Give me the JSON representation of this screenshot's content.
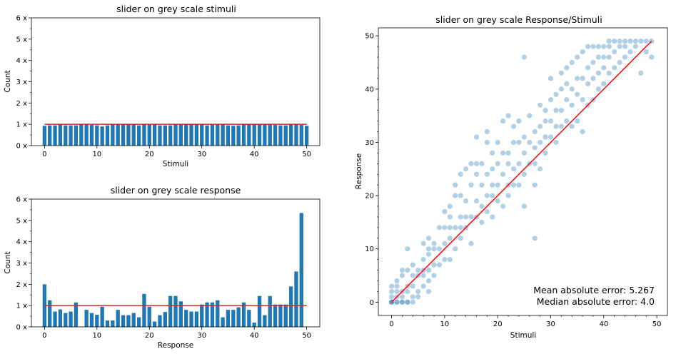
{
  "chart_data": [
    {
      "type": "bar",
      "title": "slider on grey scale stimuli",
      "xlabel": "Stimuli",
      "ylabel": "Count",
      "xlim": [
        -2.5,
        52.5
      ],
      "ylim": [
        0,
        6
      ],
      "xticks": [
        "0",
        "10",
        "20",
        "30",
        "40",
        "50"
      ],
      "yticks": [
        "0 x",
        "1 x",
        "2 x",
        "3 x",
        "4 x",
        "5 x",
        "6 x"
      ],
      "x": [
        0,
        1,
        2,
        3,
        4,
        5,
        6,
        7,
        8,
        9,
        10,
        11,
        12,
        13,
        14,
        15,
        16,
        17,
        18,
        19,
        20,
        21,
        22,
        23,
        24,
        25,
        26,
        27,
        28,
        29,
        30,
        31,
        32,
        33,
        34,
        35,
        36,
        37,
        38,
        39,
        40,
        41,
        42,
        43,
        44,
        45,
        46,
        47,
        48,
        49,
        50
      ],
      "values": [
        0.93,
        0.95,
        0.95,
        1.0,
        0.95,
        0.95,
        0.95,
        1.0,
        1.0,
        0.97,
        0.95,
        0.9,
        0.95,
        1.0,
        1.0,
        1.0,
        1.0,
        1.0,
        0.95,
        1.0,
        1.0,
        1.0,
        0.95,
        0.95,
        0.95,
        1.0,
        1.0,
        1.0,
        1.0,
        1.0,
        1.0,
        0.95,
        1.0,
        1.0,
        1.0,
        0.95,
        0.93,
        0.95,
        1.0,
        1.0,
        1.0,
        1.0,
        1.0,
        1.0,
        0.97,
        0.95,
        0.95,
        1.0,
        1.0,
        0.97,
        0.93
      ],
      "reference_line": 1.0,
      "bar_color": "#1f77b4",
      "line_color": "#d62728"
    },
    {
      "type": "bar",
      "title": "slider on grey scale response",
      "xlabel": "Response",
      "ylabel": "Count",
      "xlim": [
        -2.5,
        52.5
      ],
      "ylim": [
        0,
        6
      ],
      "xticks": [
        "0",
        "10",
        "20",
        "30",
        "40",
        "50"
      ],
      "yticks": [
        "0 x",
        "1 x",
        "2 x",
        "3 x",
        "4 x",
        "5 x",
        "6 x"
      ],
      "x": [
        0,
        1,
        2,
        3,
        4,
        5,
        6,
        7,
        8,
        9,
        10,
        11,
        12,
        13,
        14,
        15,
        16,
        17,
        18,
        19,
        20,
        21,
        22,
        23,
        24,
        25,
        26,
        27,
        28,
        29,
        30,
        31,
        32,
        33,
        34,
        35,
        36,
        37,
        38,
        39,
        40,
        41,
        42,
        43,
        44,
        45,
        46,
        47,
        48,
        49,
        50
      ],
      "values": [
        2.0,
        1.25,
        0.72,
        0.82,
        0.65,
        0.72,
        1.15,
        0.0,
        0.8,
        0.65,
        0.57,
        0.95,
        0.3,
        0.3,
        0.8,
        0.55,
        0.55,
        0.65,
        0.45,
        1.55,
        0.95,
        0.25,
        0.55,
        0.7,
        1.45,
        1.45,
        1.2,
        0.8,
        0.72,
        0.72,
        1.05,
        1.15,
        1.15,
        1.25,
        0.45,
        0.8,
        0.8,
        0.92,
        1.15,
        0.8,
        0.2,
        1.45,
        0.55,
        1.45,
        1.05,
        1.05,
        1.05,
        1.9,
        2.6,
        5.35,
        0.0
      ],
      "reference_line": 1.0,
      "bar_color": "#1f77b4",
      "line_color": "#d62728"
    },
    {
      "type": "scatter",
      "title": "slider on grey scale Response/Stimuli",
      "xlabel": "Stimuli",
      "ylabel": "Response",
      "xlim": [
        -2.5,
        52
      ],
      "ylim": [
        -2.5,
        51.5
      ],
      "xticks": [
        "0",
        "10",
        "20",
        "30",
        "40",
        "50"
      ],
      "yticks": [
        "0",
        "10",
        "20",
        "30",
        "40",
        "50"
      ],
      "point_color": "#1f77b4",
      "point_alpha": 0.35,
      "identity_line": [
        [
          0,
          0
        ],
        [
          49,
          49
        ]
      ],
      "line_color": "#ff0000",
      "points": [
        [
          0,
          0
        ],
        [
          0,
          0
        ],
        [
          0,
          0
        ],
        [
          0,
          1
        ],
        [
          0,
          2
        ],
        [
          0,
          3
        ],
        [
          1,
          0
        ],
        [
          1,
          0
        ],
        [
          1,
          1
        ],
        [
          1,
          2
        ],
        [
          1,
          3
        ],
        [
          1,
          4
        ],
        [
          2,
          0
        ],
        [
          2,
          0
        ],
        [
          2,
          1
        ],
        [
          2,
          2
        ],
        [
          2,
          5
        ],
        [
          2,
          6
        ],
        [
          3,
          0
        ],
        [
          3,
          0
        ],
        [
          3,
          2
        ],
        [
          3,
          3
        ],
        [
          3,
          6
        ],
        [
          3,
          10
        ],
        [
          4,
          0
        ],
        [
          4,
          1
        ],
        [
          4,
          3
        ],
        [
          4,
          5
        ],
        [
          4,
          7
        ],
        [
          5,
          1
        ],
        [
          5,
          2
        ],
        [
          5,
          5
        ],
        [
          5,
          6
        ],
        [
          6,
          3
        ],
        [
          6,
          5
        ],
        [
          6,
          6
        ],
        [
          6,
          8
        ],
        [
          6,
          11
        ],
        [
          7,
          2
        ],
        [
          7,
          4
        ],
        [
          7,
          6
        ],
        [
          7,
          9
        ],
        [
          7,
          10
        ],
        [
          7,
          12
        ],
        [
          8,
          5
        ],
        [
          8,
          7
        ],
        [
          8,
          10
        ],
        [
          8,
          11
        ],
        [
          9,
          7
        ],
        [
          9,
          10
        ],
        [
          9,
          14
        ],
        [
          10,
          8
        ],
        [
          10,
          11
        ],
        [
          10,
          14
        ],
        [
          10,
          17
        ],
        [
          11,
          8
        ],
        [
          11,
          12
        ],
        [
          11,
          14
        ],
        [
          11,
          16
        ],
        [
          11,
          18
        ],
        [
          12,
          10
        ],
        [
          12,
          14
        ],
        [
          12,
          20
        ],
        [
          12,
          22
        ],
        [
          13,
          12
        ],
        [
          13,
          14
        ],
        [
          13,
          16
        ],
        [
          13,
          20
        ],
        [
          13,
          24
        ],
        [
          14,
          14
        ],
        [
          14,
          16
        ],
        [
          14,
          19
        ],
        [
          14,
          25
        ],
        [
          15,
          11
        ],
        [
          15,
          16
        ],
        [
          15,
          22
        ],
        [
          15,
          26
        ],
        [
          16,
          16
        ],
        [
          16,
          19
        ],
        [
          16,
          24
        ],
        [
          16,
          26
        ],
        [
          16,
          31
        ],
        [
          17,
          15
        ],
        [
          17,
          18
        ],
        [
          17,
          22
        ],
        [
          17,
          26
        ],
        [
          18,
          17
        ],
        [
          18,
          20
        ],
        [
          18,
          24
        ],
        [
          18,
          30
        ],
        [
          18,
          32
        ],
        [
          19,
          16
        ],
        [
          19,
          20
        ],
        [
          19,
          22
        ],
        [
          19,
          25
        ],
        [
          19,
          28
        ],
        [
          20,
          19
        ],
        [
          20,
          22
        ],
        [
          20,
          26
        ],
        [
          20,
          30
        ],
        [
          21,
          18
        ],
        [
          21,
          24
        ],
        [
          21,
          28
        ],
        [
          21,
          34
        ],
        [
          22,
          20
        ],
        [
          22,
          22
        ],
        [
          22,
          26
        ],
        [
          22,
          28
        ],
        [
          22,
          35
        ],
        [
          23,
          22
        ],
        [
          23,
          25
        ],
        [
          23,
          30
        ],
        [
          23,
          33
        ],
        [
          24,
          22
        ],
        [
          24,
          26
        ],
        [
          24,
          30
        ],
        [
          24,
          34
        ],
        [
          25,
          18
        ],
        [
          25,
          24
        ],
        [
          25,
          28
        ],
        [
          25,
          31
        ],
        [
          25,
          46
        ],
        [
          26,
          26
        ],
        [
          26,
          30
        ],
        [
          26,
          35
        ],
        [
          27,
          22
        ],
        [
          27,
          26
        ],
        [
          27,
          29
        ],
        [
          27,
          32
        ],
        [
          27,
          12
        ],
        [
          28,
          25
        ],
        [
          28,
          30
        ],
        [
          28,
          33
        ],
        [
          28,
          37
        ],
        [
          29,
          28
        ],
        [
          29,
          31
        ],
        [
          29,
          34
        ],
        [
          29,
          36
        ],
        [
          30,
          31
        ],
        [
          30,
          34
        ],
        [
          30,
          38
        ],
        [
          30,
          42
        ],
        [
          31,
          30
        ],
        [
          31,
          33
        ],
        [
          31,
          36
        ],
        [
          31,
          39
        ],
        [
          32,
          33
        ],
        [
          32,
          36
        ],
        [
          32,
          40
        ],
        [
          32,
          43
        ],
        [
          33,
          34
        ],
        [
          33,
          38
        ],
        [
          33,
          41
        ],
        [
          33,
          44
        ],
        [
          34,
          33
        ],
        [
          34,
          37
        ],
        [
          34,
          40
        ],
        [
          34,
          45
        ],
        [
          35,
          34
        ],
        [
          35,
          39
        ],
        [
          35,
          42
        ],
        [
          35,
          46
        ],
        [
          36,
          32
        ],
        [
          36,
          38
        ],
        [
          36,
          42
        ],
        [
          36,
          47
        ],
        [
          37,
          37
        ],
        [
          37,
          41
        ],
        [
          37,
          44
        ],
        [
          37,
          48
        ],
        [
          38,
          38
        ],
        [
          38,
          42
        ],
        [
          38,
          45
        ],
        [
          38,
          48
        ],
        [
          39,
          40
        ],
        [
          39,
          43
        ],
        [
          39,
          46
        ],
        [
          39,
          48
        ],
        [
          40,
          41
        ],
        [
          40,
          44
        ],
        [
          40,
          46
        ],
        [
          40,
          48
        ],
        [
          41,
          43
        ],
        [
          41,
          46
        ],
        [
          41,
          48
        ],
        [
          41,
          49
        ],
        [
          42,
          44
        ],
        [
          42,
          47
        ],
        [
          42,
          49
        ],
        [
          43,
          45
        ],
        [
          43,
          48
        ],
        [
          43,
          49
        ],
        [
          44,
          46
        ],
        [
          44,
          48
        ],
        [
          44,
          49
        ],
        [
          45,
          47
        ],
        [
          45,
          49
        ],
        [
          46,
          48
        ],
        [
          46,
          49
        ],
        [
          47,
          49
        ],
        [
          47,
          43
        ],
        [
          48,
          49
        ],
        [
          48,
          47
        ],
        [
          49,
          49
        ],
        [
          49,
          46
        ]
      ],
      "annotations": [
        "Mean absolute error: 5.267",
        "Median absolute error: 4.0"
      ]
    }
  ]
}
